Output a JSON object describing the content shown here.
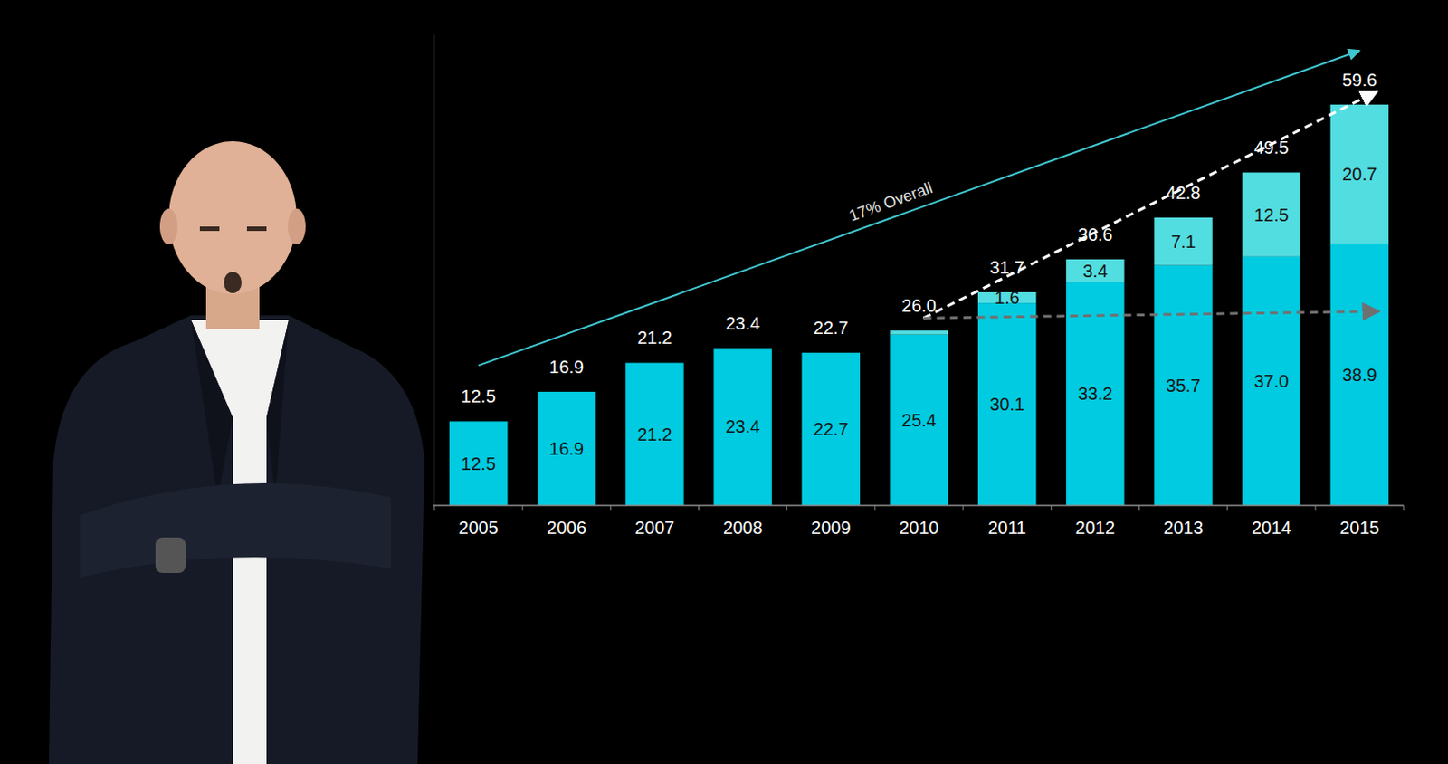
{
  "chart_data": {
    "type": "bar",
    "stacked": true,
    "data_labels": true,
    "tick_labels": "x",
    "categories": [
      "2005",
      "2006",
      "2007",
      "2008",
      "2009",
      "2010",
      "2011",
      "2012",
      "2013",
      "2014",
      "2015"
    ],
    "ylim": [
      0,
      70
    ],
    "yticks": [
      0
    ],
    "series": [
      {
        "color": "#00cbe0",
        "values": [
          12.5,
          16.9,
          21.2,
          23.4,
          22.7,
          25.4,
          30.1,
          33.2,
          35.7,
          37.0,
          38.9
        ],
        "value_labels": [
          "12.5",
          "16.9",
          "21.2",
          "23.4",
          "22.7",
          "25.4",
          "30.1",
          "33.2",
          "35.7",
          "37.0",
          "38.9"
        ]
      },
      {
        "color": "#52dde0",
        "values": [
          null,
          null,
          null,
          null,
          null,
          0.6,
          1.6,
          3.4,
          7.1,
          12.5,
          20.7
        ],
        "value_labels": [
          null,
          null,
          null,
          null,
          null,
          null,
          "1.6",
          "3.4",
          "7.1",
          "12.5",
          "20.7"
        ]
      }
    ],
    "totals": {
      "values": [
        12.5,
        16.9,
        21.2,
        23.4,
        22.7,
        26.0,
        31.7,
        36.6,
        42.8,
        49.5,
        59.6
      ],
      "value_labels": [
        "12.5",
        "16.9",
        "21.2",
        "23.4",
        "22.7",
        "26.0",
        "31.7",
        "36.6",
        "42.8",
        "49.5",
        "59.6"
      ]
    },
    "annotations": [
      {
        "text": "17% Overall"
      }
    ]
  }
}
